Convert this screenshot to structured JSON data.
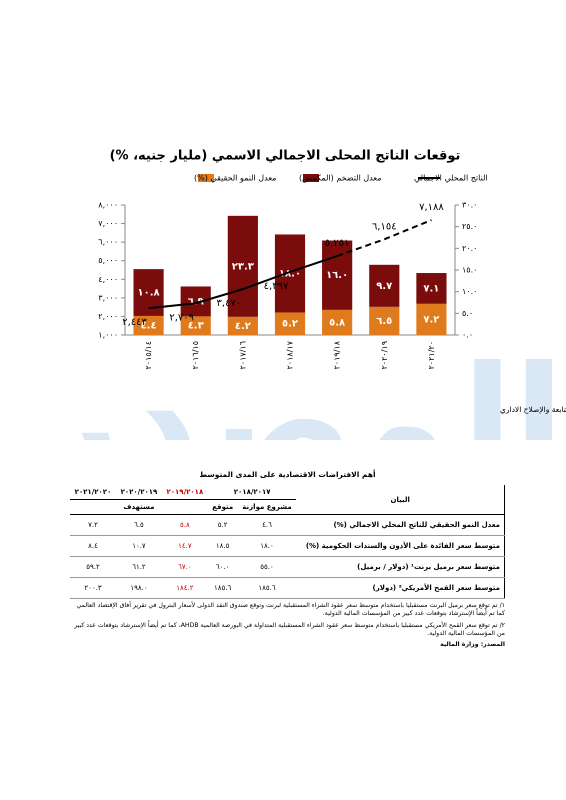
{
  "chart_data": {
    "type": "combo",
    "title": "توقعات الناتج المحلى الاجمالي الاسمي (مليار جنيه، %)",
    "categories": [
      "٢٠١٥/١٤",
      "٢٠١٦/١٥",
      "٢٠١٧/١٦",
      "٢٠١٨/١٧",
      "٢٠١٩/١٨",
      "٢٠٢٠/١٩",
      "٢٠٢١/٢٠"
    ],
    "series": [
      {
        "name": "معدل النمو الحقيقي (%)",
        "color": "#e07b1d",
        "type": "bar",
        "axis": "y2",
        "values": [
          4.4,
          4.3,
          4.2,
          5.2,
          5.8,
          6.5,
          7.2
        ],
        "value_labels": [
          "٤.٤",
          "٤.٣",
          "٤.٢",
          "٥.٢",
          "٥.٨",
          "٦.٥",
          "٧.٢"
        ]
      },
      {
        "name": "معدل التضخم (المكمش)",
        "color": "#7b0c0c",
        "type": "bar",
        "axis": "y2",
        "values": [
          10.8,
          6.9,
          23.3,
          18.0,
          16.0,
          9.7,
          7.1
        ],
        "value_labels": [
          "١٠.٨",
          "٦.٩",
          "٢٣.٣",
          "١٨.٠",
          "١٦.٠",
          "٩.٧",
          "٧.١"
        ]
      },
      {
        "name": "الناتج المحلي الاجمالي",
        "color": "#000000",
        "type": "line",
        "values": [
          2443,
          2709,
          3470,
          4397,
          5251,
          6154,
          7188
        ],
        "value_labels": [
          "٢,٤٤٣",
          "٢,٧٠٩",
          "٣,٤٧٠",
          "٤,٣٩٧",
          "٥,٢٥١",
          "٦,١٥٤",
          "٧,١٨٨"
        ]
      }
    ],
    "ylim": [
      1000,
      8000
    ],
    "yticks": [
      {
        "value": 1000,
        "label": "١,٠٠٠"
      },
      {
        "value": 2000,
        "label": "٢,٠٠٠"
      },
      {
        "value": 3000,
        "label": "٣,٠٠٠"
      },
      {
        "value": 4000,
        "label": "٤,٠٠٠"
      },
      {
        "value": 5000,
        "label": "٥,٠٠٠"
      },
      {
        "value": 6000,
        "label": "٦,٠٠٠"
      },
      {
        "value": 7000,
        "label": "٧,٠٠٠"
      },
      {
        "value": 8000,
        "label": "٨,٠٠٠"
      }
    ],
    "y2lim": [
      0,
      30
    ],
    "y2ticks": [
      {
        "value": 0,
        "label": "٠.٠"
      },
      {
        "value": 5,
        "label": "٥.٠"
      },
      {
        "value": 10,
        "label": "١٠.٠"
      },
      {
        "value": 15,
        "label": "١٥.٠"
      },
      {
        "value": 20,
        "label": "٢٠.٠"
      },
      {
        "value": 25,
        "label": "٢٥.٠"
      },
      {
        "value": 30,
        "label": "٣٠.٠"
      }
    ],
    "source": "المصدر: تقديرات أولية سيتم مراجعتها وتدقيقها مع وزارة التخطيط والمتابعة والإصلاح الاداري"
  },
  "watermark": "المصدر",
  "table": {
    "title": "أهم الافتراضات الاقتصادية على المدى المتوسط",
    "header": [
      "البيان",
      "٢٠١٨/٢٠١٧",
      "٢٠١٩/٢٠١٨",
      "٢٠٢٠/٢٠١٩",
      "٢٠٢١/٢٠٢٠"
    ],
    "subheader": [
      "مشروع موازنة",
      "متوقع",
      "مستهدف"
    ],
    "rows": [
      [
        "معدل النمو الحقيقي للناتج المحلي الاجمالي (%)",
        "٤.٦",
        "٥.٢",
        "٥.٨",
        "٦.٥",
        "٧.٢"
      ],
      [
        "متوسط سعر الفائدة على الأذون والسندات الحكومية (%)",
        "١٨.٠",
        "١٨.٥",
        "١٤.٧",
        "١٠.٧",
        "٨.٤"
      ],
      [
        "متوسط سعر برميل برنت¹ (دولار / برميل)",
        "٥٥.٠",
        "٦٠.٠",
        "٦٧.٠",
        "٦١.٢",
        "٥٩.٢"
      ],
      [
        "متوسط سعر القمح الأمريكي² (دولار)",
        "١٨٥.٦",
        "١٨٥.٦",
        "١٨٤.٢",
        "١٩٨.٠",
        "٢٠٠.٣"
      ]
    ]
  },
  "footnotes": [
    "١/ تم توقع سعر برميل البرنت مستقبليا باستخدام متوسط سعر عقود الشراء المستقبلية لبرنت وتوقع صندوق النقد الدولى لأسعار البترول في تقرير آفاق الإقتصاد العالمي كما تم أيضاً الإسترشاد بتوقعات عدد كبير من المؤسسات المالية الدولية.",
    "٢/ تم توقع سعر القمح الأمريكي مستقبليا باستخدام متوسط سعر عقود الشراء المستقبلية المتداولة في البورصة العالمية AHDB، كما تم أيضاً الإسترشاد بتوقعات عدد كبير من المؤسسات المالية الدولية."
  ],
  "source": "المصدر: وزارة المالية"
}
